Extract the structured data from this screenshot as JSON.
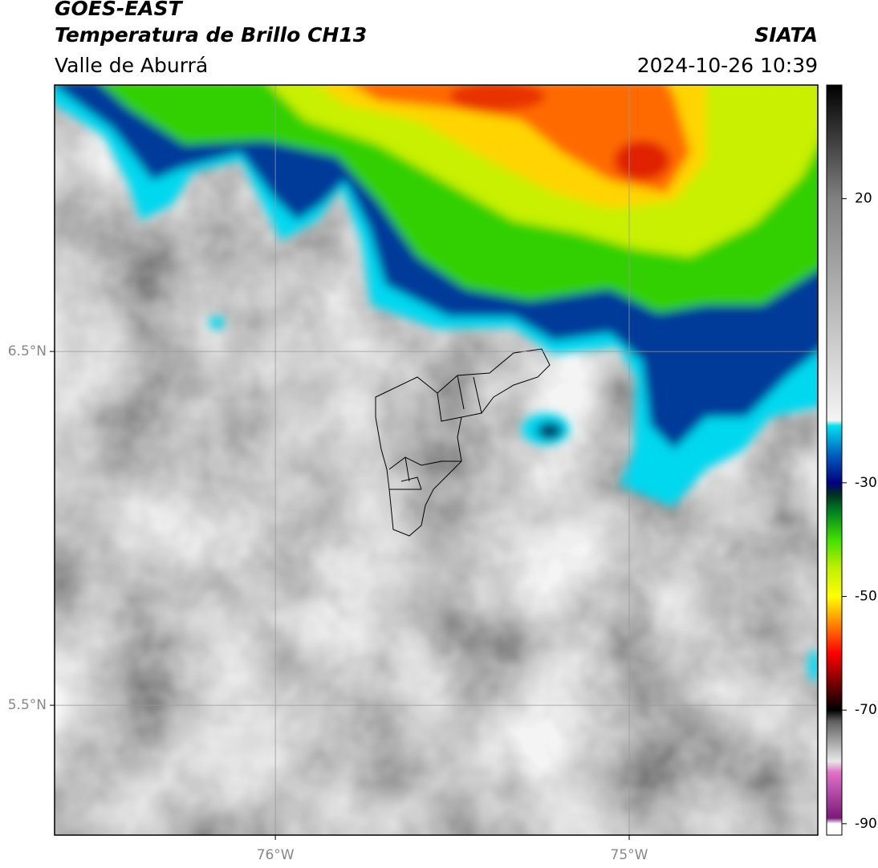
{
  "header": {
    "title": "GOES-EAST",
    "subtitle": "Temperatura de Brillo CH13",
    "region": "Valle de Aburrá",
    "source": "SIATA",
    "datetime": "2024-10-26 10:39"
  },
  "map": {
    "latlim": [
      5.133,
      7.253
    ],
    "lonlim": [
      -76.624,
      -74.467
    ],
    "latticks": [
      {
        "value": 6.5,
        "label": "6.5°N"
      },
      {
        "value": 5.5,
        "label": "5.5°N"
      }
    ],
    "lonticks": [
      {
        "value": -76,
        "label": "76°W"
      },
      {
        "value": -75,
        "label": "75°W"
      }
    ]
  },
  "colorbar": {
    "lim": [
      -92,
      40
    ],
    "ticks": [
      20,
      -30,
      -50,
      -70,
      -90
    ],
    "stops": [
      {
        "value": -92,
        "color": "#ffffff"
      },
      {
        "value": -90,
        "color": "#ffffff"
      },
      {
        "value": -89,
        "color": "#7a1a7a"
      },
      {
        "value": -81,
        "color": "#e070c8"
      },
      {
        "value": -79,
        "color": "#e8e8e8"
      },
      {
        "value": -72,
        "color": "#606060"
      },
      {
        "value": -70,
        "color": "#000000"
      },
      {
        "value": -65,
        "color": "#800000"
      },
      {
        "value": -60,
        "color": "#ff0000"
      },
      {
        "value": -55,
        "color": "#ff8000"
      },
      {
        "value": -50,
        "color": "#ffff00"
      },
      {
        "value": -45,
        "color": "#c0f000"
      },
      {
        "value": -40,
        "color": "#40e000"
      },
      {
        "value": -35,
        "color": "#008020"
      },
      {
        "value": -32,
        "color": "#003020"
      },
      {
        "value": -30,
        "color": "#000080"
      },
      {
        "value": -25,
        "color": "#0060c0"
      },
      {
        "value": -20,
        "color": "#00e0f0"
      },
      {
        "value": -19,
        "color": "#f4f4f4"
      },
      {
        "value": 20,
        "color": "#808080"
      },
      {
        "value": 40,
        "color": "#000000"
      }
    ]
  }
}
